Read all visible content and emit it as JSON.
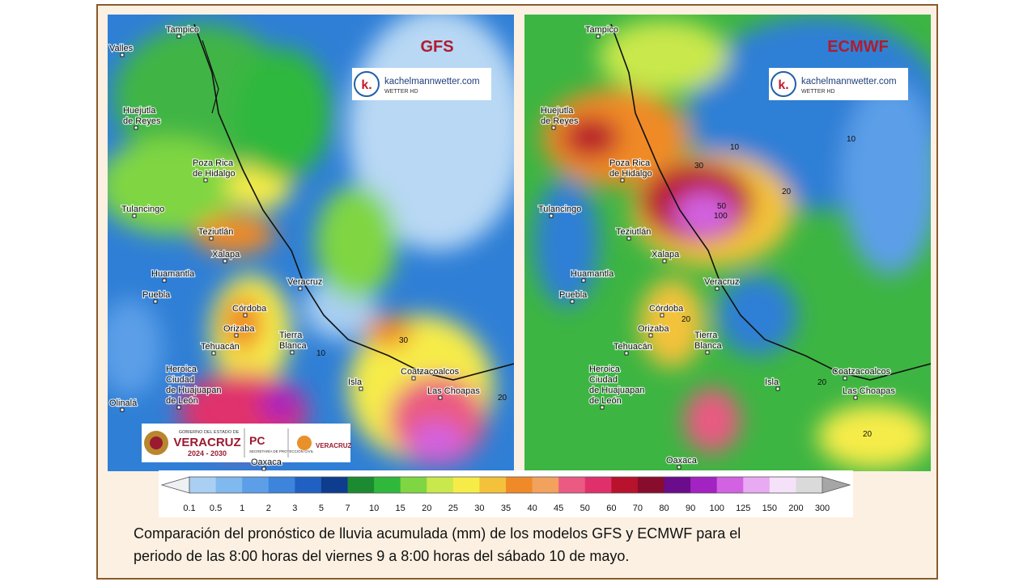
{
  "maps": [
    {
      "title": "GFS",
      "logo": {
        "mark": "k.",
        "site": "kachelmannwetter.com",
        "sub": "WETTER HD"
      },
      "places": [
        [
          "Tampico"
        ],
        [
          "Valles"
        ],
        [
          "Huejutla",
          "de Reyes"
        ],
        [
          "Poza Rica",
          "de Hidalgo"
        ],
        [
          "Tulancingo"
        ],
        [
          "Teziutlán"
        ],
        [
          "Xalapa"
        ],
        [
          "Huamantla"
        ],
        [
          "Veracruz"
        ],
        [
          "Puebla"
        ],
        [
          "Córdoba"
        ],
        [
          "Orizaba"
        ],
        [
          "Tierra",
          "Blanca"
        ],
        [
          "Tehuacán"
        ],
        [
          "Heroica",
          "Ciudad",
          "de Huajuapan",
          "de León"
        ],
        [
          "Isla"
        ],
        [
          "Coatzacoalcos"
        ],
        [
          "Las Choapas"
        ],
        [
          "Olinalá"
        ],
        [
          "Oaxaca"
        ]
      ],
      "contour_labels": [
        30,
        10,
        20
      ]
    },
    {
      "title": "ECMWF",
      "logo": {
        "mark": "k.",
        "site": "kachelmannwetter.com",
        "sub": "WETTER HD"
      },
      "places": [
        [
          "Tampico"
        ],
        [
          "Huejutla",
          "de Reyes"
        ],
        [
          "Poza Rica",
          "de Hidalgo"
        ],
        [
          "Tulancingo"
        ],
        [
          "Teziutlán"
        ],
        [
          "Xalapa"
        ],
        [
          "Huamantla"
        ],
        [
          "Veracruz"
        ],
        [
          "Puebla"
        ],
        [
          "Córdoba"
        ],
        [
          "Orizaba"
        ],
        [
          "Tierra",
          "Blanca"
        ],
        [
          "Tehuacán"
        ],
        [
          "Heroica",
          "Ciudad",
          "de Huajuapan",
          "de León"
        ],
        [
          "Isla"
        ],
        [
          "Coatzacoalcos"
        ],
        [
          "Las Choapas"
        ],
        [
          "Oaxaca"
        ]
      ],
      "contour_labels": [
        10,
        30,
        20,
        50,
        100,
        10,
        20,
        20,
        20
      ]
    }
  ],
  "government_logo": {
    "line1": "GOBIERNO DEL ESTADO DE",
    "state": "VERACRUZ",
    "years": "2024 - 2030",
    "pc": "PC",
    "pc_sub": "SECRETARÍA DE PROTECCIÓN CIVIL",
    "right": "VERACRUZ"
  },
  "legend": {
    "ticks": [
      0.1,
      0.5,
      1,
      2,
      3,
      5,
      7,
      10,
      15,
      20,
      25,
      30,
      35,
      40,
      45,
      50,
      60,
      70,
      80,
      90,
      100,
      125,
      150,
      200,
      300
    ],
    "colors": [
      "#a9cff2",
      "#80b8f0",
      "#5c9fe8",
      "#3c84dc",
      "#2060c2",
      "#0e3c8e",
      "#1b8a30",
      "#2fb83c",
      "#7fd642",
      "#c9e84c",
      "#f6ec48",
      "#f3c23a",
      "#f08a28",
      "#f2a25c",
      "#ea5a82",
      "#e0306c",
      "#b8122c",
      "#880c2c",
      "#6a0c8c",
      "#a222c2",
      "#d262e2",
      "#e8aaf2",
      "#f5e2f9",
      "#dadada"
    ],
    "low_color": "#eef0f4",
    "high_color": "#a6a6a6"
  },
  "caption": [
    "Comparación del pronóstico de lluvia acumulada (mm) de los modelos GFS y ECMWF para el",
    "periodo de las 8:00 horas del viernes 9 a 8:00 horas del sábado 10 de mayo."
  ]
}
